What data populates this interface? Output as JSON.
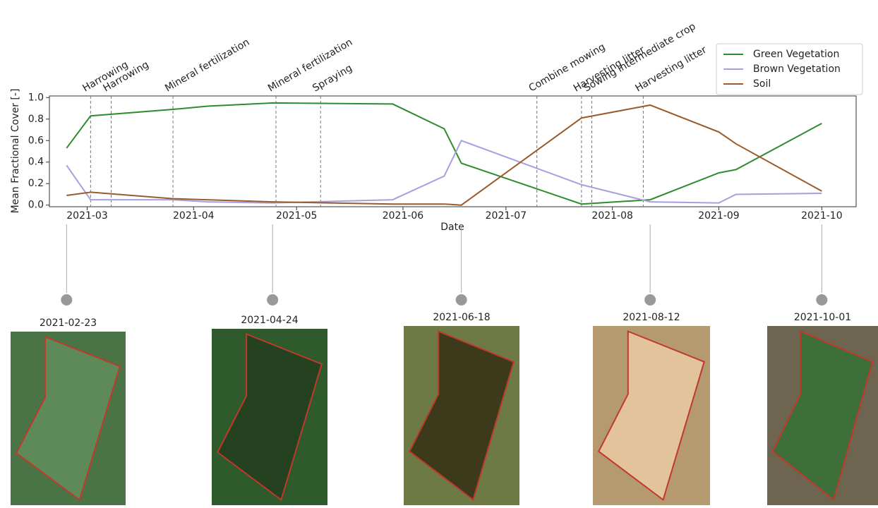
{
  "chart_data": {
    "type": "line",
    "x_label": "Date",
    "y_label": "Mean Fractional Cover [-]",
    "x": [
      "2021-02-23",
      "2021-03-02",
      "2021-03-26",
      "2021-04-05",
      "2021-04-24",
      "2021-05-29",
      "2021-06-13",
      "2021-06-18",
      "2021-07-23",
      "2021-08-12",
      "2021-09-01",
      "2021-09-06",
      "2021-10-01"
    ],
    "series": [
      {
        "name": "Green Vegetation",
        "color": "#2e8b2e",
        "values": [
          0.53,
          0.83,
          0.89,
          0.92,
          0.95,
          0.94,
          0.71,
          0.39,
          0.01,
          0.05,
          0.3,
          0.33,
          0.76
        ]
      },
      {
        "name": "Brown Vegetation",
        "color": "#a99ee0",
        "values": [
          0.37,
          0.05,
          0.05,
          0.03,
          0.02,
          0.05,
          0.27,
          0.6,
          0.19,
          0.03,
          0.02,
          0.1,
          0.11
        ]
      },
      {
        "name": "Soil",
        "color": "#9a5a2a",
        "values": [
          0.09,
          0.12,
          0.06,
          0.05,
          0.03,
          0.01,
          0.01,
          0.0,
          0.81,
          0.93,
          0.68,
          0.57,
          0.13
        ]
      }
    ],
    "xlim": [
      "2021-02-18",
      "2021-10-11"
    ],
    "xticks": [
      {
        "value": "2021-03-01",
        "label": "2021-03"
      },
      {
        "value": "2021-04-01",
        "label": "2021-04"
      },
      {
        "value": "2021-05-01",
        "label": "2021-05"
      },
      {
        "value": "2021-06-01",
        "label": "2021-06"
      },
      {
        "value": "2021-07-01",
        "label": "2021-07"
      },
      {
        "value": "2021-08-01",
        "label": "2021-08"
      },
      {
        "value": "2021-09-01",
        "label": "2021-09"
      },
      {
        "value": "2021-10-01",
        "label": "2021-10"
      }
    ],
    "ylim": [
      -0.015,
      1.015
    ],
    "yticks": [
      {
        "value": 0,
        "label": "0.0"
      },
      {
        "value": 0.2,
        "label": "0.2"
      },
      {
        "value": 0.4,
        "label": "0.4"
      },
      {
        "value": 0.6,
        "label": "0.6"
      },
      {
        "value": 0.8,
        "label": "0.8"
      },
      {
        "value": 1,
        "label": "1.0"
      }
    ],
    "legend": "upper right",
    "events": [
      {
        "date": "2021-03-02",
        "label": "Harrowing"
      },
      {
        "date": "2021-03-08",
        "label": "Harrowing"
      },
      {
        "date": "2021-03-26",
        "label": "Mineral fertilization"
      },
      {
        "date": "2021-04-25",
        "label": "Mineral fertilization"
      },
      {
        "date": "2021-05-08",
        "label": "Spraying"
      },
      {
        "date": "2021-07-10",
        "label": "Combine mowing"
      },
      {
        "date": "2021-07-23",
        "label": "Harvesting litter"
      },
      {
        "date": "2021-07-26",
        "label": "Sowing intermediate crop"
      },
      {
        "date": "2021-08-10",
        "label": "Harvesting litter"
      }
    ],
    "thumbnails": [
      {
        "date": "2021-02-23",
        "label": "2021-02-23"
      },
      {
        "date": "2021-04-24",
        "label": "2021-04-24"
      },
      {
        "date": "2021-06-18",
        "label": "2021-06-18"
      },
      {
        "date": "2021-08-12",
        "label": "2021-08-12"
      },
      {
        "date": "2021-10-01",
        "label": "2021-10-01"
      }
    ]
  }
}
